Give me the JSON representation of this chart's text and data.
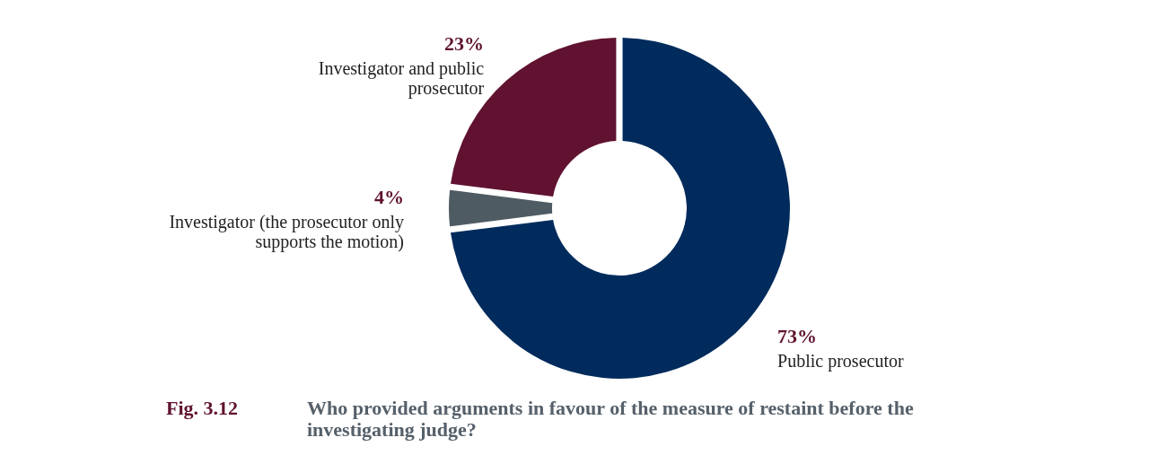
{
  "chart_data": {
    "type": "donut",
    "title": "Who provided arguments in favour of the measure of restaint before the investigating judge?",
    "annotations": [
      "Fig. 3.12"
    ],
    "categories": [
      "Public prosecutor",
      "Investigator (the prosecutor only supports the motion)",
      "Investigator and public prosecutor"
    ],
    "values": [
      73,
      4,
      23
    ],
    "value_labels": [
      "73%",
      "4%",
      "23%"
    ],
    "colors": [
      "#002b5c",
      "#4f5b63",
      "#601230"
    ]
  }
}
